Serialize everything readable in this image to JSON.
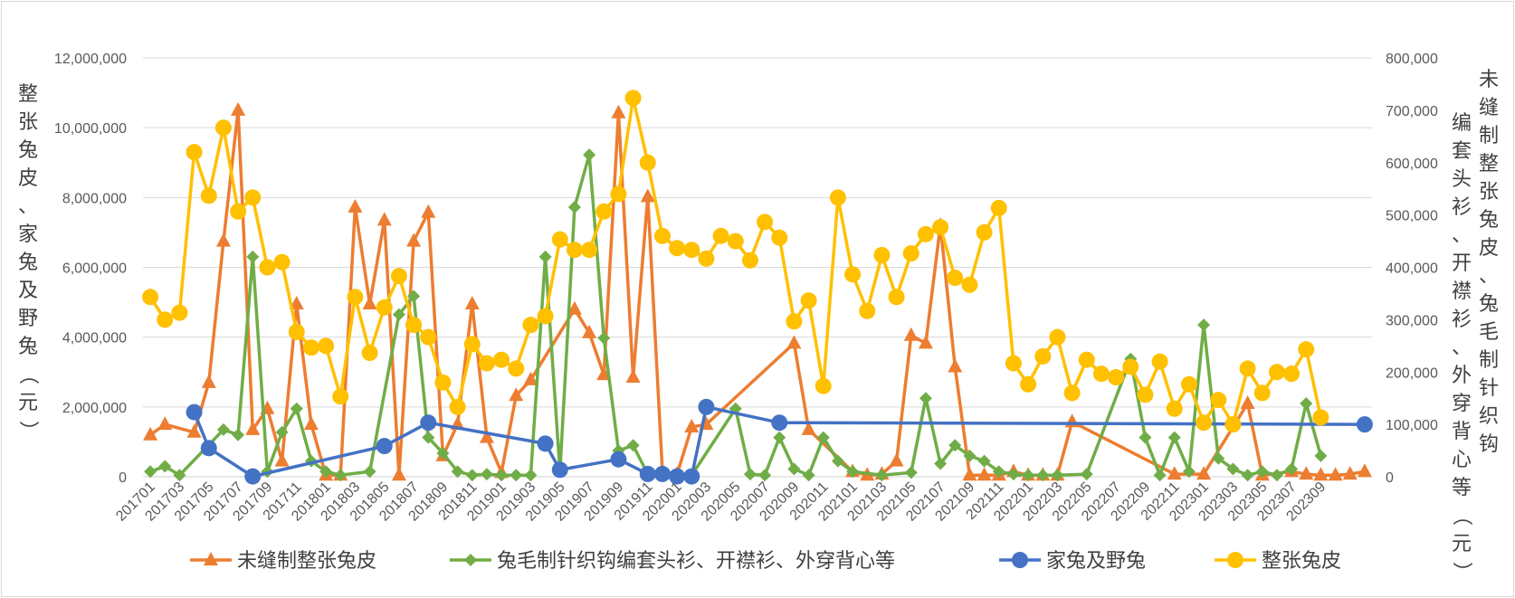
{
  "chart_data": {
    "type": "line",
    "y_left_label": "整张兔皮、家兔及野兔（元）",
    "y_right_label": "未缝制整张兔皮、兔毛制针织钩编套头衫、开襟衫、外穿背心等（元）",
    "ylim_left": [
      0,
      12000000
    ],
    "ylim_right": [
      0,
      800000
    ],
    "y_left_ticks": [
      "0",
      "2,000,000",
      "4,000,000",
      "6,000,000",
      "8,000,000",
      "10,000,000",
      "12,000,000"
    ],
    "y_right_ticks": [
      "0",
      "100,000",
      "200,000",
      "300,000",
      "400,000",
      "500,000",
      "600,000",
      "700,000",
      "800,000"
    ],
    "x_tick_labels": [
      "201701",
      "201703",
      "201705",
      "201707",
      "201709",
      "201711",
      "201801",
      "201803",
      "201805",
      "201807",
      "201809",
      "201811",
      "201901",
      "201903",
      "201905",
      "201907",
      "201909",
      "201911",
      "202001",
      "202003",
      "202005",
      "202007",
      "202009",
      "202011",
      "202101",
      "202103",
      "202105",
      "202107",
      "202109",
      "202111",
      "202201",
      "202203",
      "202205",
      "202207",
      "202209",
      "202211",
      "202301",
      "202303",
      "202305",
      "202307",
      "202309"
    ],
    "legend_position": "bottom",
    "grid": true,
    "series": [
      {
        "name": "未缝制整张兔皮",
        "axis": "right",
        "color": "#ED7D31",
        "marker": "triangle",
        "points": [
          [
            1,
            80000
          ],
          [
            2,
            100000
          ],
          [
            4,
            85000
          ],
          [
            5,
            180000
          ],
          [
            6,
            450000
          ],
          [
            7,
            700000
          ],
          [
            8,
            90000
          ],
          [
            9,
            130000
          ],
          [
            10,
            30000
          ],
          [
            11,
            330000
          ],
          [
            12,
            100000
          ],
          [
            13,
            3000
          ],
          [
            14,
            3000
          ],
          [
            15,
            515000
          ],
          [
            16,
            330000
          ],
          [
            17,
            490000
          ],
          [
            18,
            3000
          ],
          [
            19,
            450000
          ],
          [
            20,
            505000
          ],
          [
            21,
            40000
          ],
          [
            22,
            100000
          ],
          [
            23,
            330000
          ],
          [
            24,
            75000
          ],
          [
            25,
            8000
          ],
          [
            26,
            155000
          ],
          [
            27,
            185000
          ],
          [
            30,
            320000
          ],
          [
            31,
            275000
          ],
          [
            32,
            195000
          ],
          [
            33,
            695000
          ],
          [
            34,
            190000
          ],
          [
            35,
            535000
          ],
          [
            36,
            10000
          ],
          [
            37,
            5000
          ],
          [
            38,
            95000
          ],
          [
            39,
            100000
          ],
          [
            45,
            255000
          ],
          [
            46,
            90000
          ],
          [
            49,
            10000
          ],
          [
            50,
            3000
          ],
          [
            51,
            5000
          ],
          [
            52,
            30000
          ],
          [
            53,
            270000
          ],
          [
            54,
            255000
          ],
          [
            55,
            480000
          ],
          [
            56,
            210000
          ],
          [
            57,
            3000
          ],
          [
            58,
            3000
          ],
          [
            59,
            3000
          ],
          [
            60,
            10000
          ],
          [
            61,
            3000
          ],
          [
            62,
            3000
          ],
          [
            63,
            3000
          ],
          [
            64,
            105000
          ],
          [
            71,
            5000
          ],
          [
            73,
            5000
          ],
          [
            76,
            140000
          ],
          [
            77,
            3000
          ],
          [
            79,
            10000
          ],
          [
            80,
            5000
          ],
          [
            81,
            3000
          ],
          [
            82,
            3000
          ],
          [
            83,
            5000
          ],
          [
            84,
            10000
          ]
        ]
      },
      {
        "name": "兔毛制针织钩编套头衫、开襟衫、外穿背心等",
        "axis": "right",
        "color": "#70AD47",
        "marker": "diamond",
        "points": [
          [
            1,
            10000
          ],
          [
            2,
            20000
          ],
          [
            3,
            3000
          ],
          [
            6,
            90000
          ],
          [
            7,
            80000
          ],
          [
            8,
            420000
          ],
          [
            9,
            10000
          ],
          [
            10,
            85000
          ],
          [
            11,
            130000
          ],
          [
            12,
            30000
          ],
          [
            13,
            10000
          ],
          [
            14,
            3000
          ],
          [
            16,
            10000
          ],
          [
            18,
            310000
          ],
          [
            19,
            345000
          ],
          [
            20,
            75000
          ],
          [
            21,
            45000
          ],
          [
            22,
            10000
          ],
          [
            23,
            3000
          ],
          [
            24,
            5000
          ],
          [
            25,
            3000
          ],
          [
            26,
            3000
          ],
          [
            27,
            3000
          ],
          [
            28,
            420000
          ],
          [
            29,
            10000
          ],
          [
            30,
            515000
          ],
          [
            31,
            615000
          ],
          [
            32,
            265000
          ],
          [
            33,
            50000
          ],
          [
            34,
            60000
          ],
          [
            35,
            5000
          ],
          [
            38,
            3000
          ],
          [
            41,
            130000
          ],
          [
            42,
            5000
          ],
          [
            43,
            3000
          ],
          [
            44,
            75000
          ],
          [
            45,
            15000
          ],
          [
            46,
            3000
          ],
          [
            47,
            75000
          ],
          [
            48,
            30000
          ],
          [
            49,
            10000
          ],
          [
            51,
            3000
          ],
          [
            53,
            8000
          ],
          [
            54,
            150000
          ],
          [
            55,
            25000
          ],
          [
            56,
            60000
          ],
          [
            57,
            40000
          ],
          [
            58,
            30000
          ],
          [
            59,
            10000
          ],
          [
            60,
            5000
          ],
          [
            61,
            3000
          ],
          [
            62,
            3000
          ],
          [
            63,
            3000
          ],
          [
            65,
            5000
          ],
          [
            68,
            225000
          ],
          [
            69,
            75000
          ],
          [
            70,
            3000
          ],
          [
            71,
            75000
          ],
          [
            72,
            10000
          ],
          [
            73,
            290000
          ],
          [
            74,
            35000
          ],
          [
            75,
            15000
          ],
          [
            76,
            3000
          ],
          [
            77,
            10000
          ],
          [
            78,
            3000
          ],
          [
            79,
            15000
          ],
          [
            80,
            140000
          ],
          [
            81,
            40000
          ]
        ]
      },
      {
        "name": "家兔及野兔",
        "axis": "left",
        "color": "#4472C4",
        "marker": "circle",
        "points": [
          [
            4,
            1850000
          ],
          [
            5,
            820000
          ],
          [
            8,
            10000
          ],
          [
            17,
            880000
          ],
          [
            20,
            1550000
          ],
          [
            28,
            950000
          ],
          [
            29,
            200000
          ],
          [
            33,
            500000
          ],
          [
            35,
            80000
          ],
          [
            36,
            80000
          ],
          [
            37,
            10000
          ],
          [
            38,
            10000
          ],
          [
            39,
            2000000
          ],
          [
            44,
            1550000
          ],
          [
            84,
            1500000
          ]
        ]
      },
      {
        "name": "整张兔皮",
        "axis": "left",
        "color": "#FFC000",
        "marker": "circle",
        "points": [
          [
            1,
            5150000
          ],
          [
            2,
            4500000
          ],
          [
            3,
            4700000
          ],
          [
            4,
            9300000
          ],
          [
            5,
            8050000
          ],
          [
            6,
            10000000
          ],
          [
            7,
            7600000
          ],
          [
            8,
            8000000
          ],
          [
            9,
            6000000
          ],
          [
            10,
            6150000
          ],
          [
            11,
            4150000
          ],
          [
            12,
            3700000
          ],
          [
            13,
            3750000
          ],
          [
            14,
            2300000
          ],
          [
            15,
            5150000
          ],
          [
            16,
            3550000
          ],
          [
            17,
            4850000
          ],
          [
            18,
            5750000
          ],
          [
            19,
            4350000
          ],
          [
            20,
            4000000
          ],
          [
            21,
            2700000
          ],
          [
            22,
            2000000
          ],
          [
            23,
            3800000
          ],
          [
            24,
            3250000
          ],
          [
            25,
            3350000
          ],
          [
            26,
            3100000
          ],
          [
            27,
            4350000
          ],
          [
            28,
            4600000
          ],
          [
            29,
            6800000
          ],
          [
            30,
            6500000
          ],
          [
            31,
            6500000
          ],
          [
            32,
            7600000
          ],
          [
            33,
            8100000
          ],
          [
            34,
            10850000
          ],
          [
            35,
            9000000
          ],
          [
            36,
            6900000
          ],
          [
            37,
            6550000
          ],
          [
            38,
            6500000
          ],
          [
            39,
            6250000
          ],
          [
            40,
            6900000
          ],
          [
            41,
            6750000
          ],
          [
            42,
            6200000
          ],
          [
            43,
            7300000
          ],
          [
            44,
            6850000
          ],
          [
            45,
            4450000
          ],
          [
            46,
            5050000
          ],
          [
            47,
            2600000
          ],
          [
            48,
            8000000
          ],
          [
            49,
            5800000
          ],
          [
            50,
            4750000
          ],
          [
            51,
            6350000
          ],
          [
            52,
            5150000
          ],
          [
            53,
            6400000
          ],
          [
            54,
            6950000
          ],
          [
            55,
            7150000
          ],
          [
            56,
            5700000
          ],
          [
            57,
            5500000
          ],
          [
            58,
            7000000
          ],
          [
            59,
            7700000
          ],
          [
            60,
            3250000
          ],
          [
            61,
            2650000
          ],
          [
            62,
            3450000
          ],
          [
            63,
            4000000
          ],
          [
            64,
            2400000
          ],
          [
            65,
            3350000
          ],
          [
            66,
            2950000
          ],
          [
            67,
            2850000
          ],
          [
            68,
            3150000
          ],
          [
            69,
            2350000
          ],
          [
            70,
            3300000
          ],
          [
            71,
            1950000
          ],
          [
            72,
            2650000
          ],
          [
            73,
            1550000
          ],
          [
            74,
            2200000
          ],
          [
            75,
            1500000
          ],
          [
            76,
            3100000
          ],
          [
            77,
            2400000
          ],
          [
            78,
            3000000
          ],
          [
            79,
            2950000
          ],
          [
            80,
            3650000
          ],
          [
            81,
            1700000
          ]
        ]
      }
    ]
  }
}
